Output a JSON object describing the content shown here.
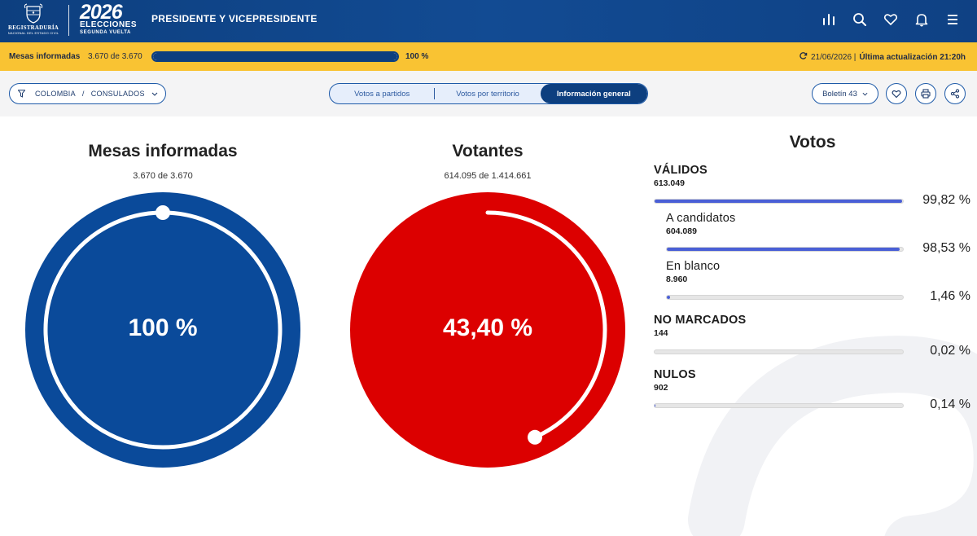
{
  "header": {
    "registraduria_name": "REGISTRADURÍA",
    "registraduria_sub": "NACIONAL DEL ESTADO CIVIL",
    "election_year": "2026",
    "election_line1": "ELECCIONES",
    "election_line2": "SEGUNDA VUELTA",
    "title": "PRESIDENTE Y VICEPRESIDENTE",
    "icons": [
      "bar-chart-icon",
      "search-icon",
      "heart-icon",
      "bell-icon",
      "menu-icon"
    ]
  },
  "progress": {
    "label": "Mesas informadas",
    "count": "3.670 de 3.670",
    "percent_text": "100 %",
    "percent_value": 100,
    "date": "21/06/2026 |",
    "last_update": "Última actualización 21:20h"
  },
  "toolbar": {
    "crumb_country": "COLOMBIA",
    "crumb_sep": "/",
    "crumb_region": "CONSULADOS",
    "tabs": [
      {
        "label": "Votos a partidos",
        "active": false
      },
      {
        "label": "Votos por territorio",
        "active": false
      },
      {
        "label": "Información general",
        "active": true
      }
    ],
    "boletin": "Boletín 43"
  },
  "mesas": {
    "title": "Mesas informadas",
    "subtitle": "3.670 de 3.670",
    "percent_text": "100 %",
    "percent_value": 100,
    "color": "#0a4a9a"
  },
  "votantes": {
    "title": "Votantes",
    "subtitle": "614.095 de 1.414.661",
    "percent_text": "43,40 %",
    "percent_value": 43.4,
    "color": "#dc0000"
  },
  "votos": {
    "title": "Votos",
    "rows": [
      {
        "name": "VÁLIDOS",
        "count": "613.049",
        "percent_text": "99,82 %",
        "percent_value": 99.82,
        "indent": false
      },
      {
        "name": "A candidatos",
        "count": "604.089",
        "percent_text": "98,53 %",
        "percent_value": 98.53,
        "indent": true
      },
      {
        "name": "En blanco",
        "count": "8.960",
        "percent_text": "1,46 %",
        "percent_value": 1.46,
        "indent": true
      },
      {
        "name": "NO MARCADOS",
        "count": "144",
        "percent_text": "0,02 %",
        "percent_value": 0.02,
        "indent": false
      },
      {
        "name": "NULOS",
        "count": "902",
        "percent_text": "0,14 %",
        "percent_value": 0.14,
        "indent": false
      }
    ],
    "bar_color": "#4a5fd6"
  }
}
